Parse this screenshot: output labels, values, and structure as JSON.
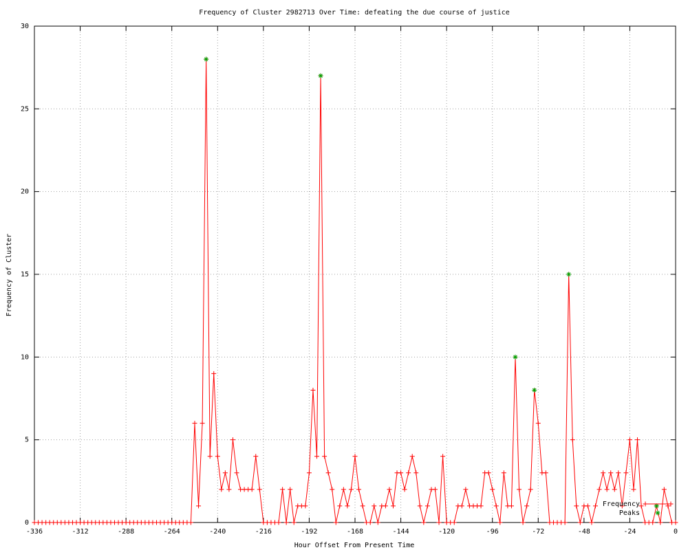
{
  "chart_data": {
    "type": "line",
    "title": "Frequency of Cluster 2982713 Over Time: defeating the due course of justice",
    "xlabel": "Hour Offset From Present Time",
    "ylabel": "Frequency of Cluster",
    "xlim": [
      -336,
      0
    ],
    "ylim": [
      0,
      30
    ],
    "xticks": [
      -336,
      -312,
      -288,
      -264,
      -240,
      -216,
      -192,
      -168,
      -144,
      -120,
      -96,
      -72,
      -48,
      -24,
      0
    ],
    "yticks": [
      0,
      5,
      10,
      15,
      20,
      25,
      30
    ],
    "grid": true,
    "legend": "bottom right",
    "series": [
      {
        "name": "Frequency",
        "color": "#ff0000",
        "marker": "plus",
        "x": [
          -336,
          -334,
          -332,
          -330,
          -328,
          -326,
          -324,
          -322,
          -320,
          -318,
          -316,
          -314,
          -312,
          -310,
          -308,
          -306,
          -304,
          -302,
          -300,
          -298,
          -296,
          -294,
          -292,
          -290,
          -288,
          -286,
          -284,
          -282,
          -280,
          -278,
          -276,
          -274,
          -272,
          -270,
          -268,
          -266,
          -264,
          -262,
          -260,
          -258,
          -256,
          -254,
          -252,
          -250,
          -248,
          -246,
          -244,
          -242,
          -240,
          -238,
          -236,
          -234,
          -232,
          -230,
          -228,
          -226,
          -224,
          -222,
          -220,
          -218,
          -216,
          -214,
          -212,
          -210,
          -208,
          -206,
          -204,
          -202,
          -200,
          -198,
          -196,
          -194,
          -192,
          -190,
          -188,
          -186,
          -184,
          -182,
          -180,
          -178,
          -176,
          -174,
          -172,
          -170,
          -168,
          -166,
          -164,
          -162,
          -160,
          -158,
          -156,
          -154,
          -152,
          -150,
          -148,
          -146,
          -144,
          -142,
          -140,
          -138,
          -136,
          -134,
          -132,
          -130,
          -128,
          -126,
          -124,
          -122,
          -120,
          -118,
          -116,
          -114,
          -112,
          -110,
          -108,
          -106,
          -104,
          -102,
          -100,
          -98,
          -96,
          -94,
          -92,
          -90,
          -88,
          -86,
          -84,
          -82,
          -80,
          -78,
          -76,
          -74,
          -72,
          -70,
          -68,
          -66,
          -64,
          -62,
          -60,
          -58,
          -56,
          -54,
          -52,
          -50,
          -48,
          -46,
          -44,
          -42,
          -40,
          -38,
          -36,
          -34,
          -32,
          -30,
          -28,
          -26,
          -24,
          -22,
          -20,
          -18,
          -16,
          -14,
          -12,
          -10,
          -8,
          -6,
          -4,
          -2,
          0
        ],
        "values": [
          0,
          0,
          0,
          0,
          0,
          0,
          0,
          0,
          0,
          0,
          0,
          0,
          0,
          0,
          0,
          0,
          0,
          0,
          0,
          0,
          0,
          0,
          0,
          0,
          0,
          0,
          0,
          0,
          0,
          0,
          0,
          0,
          0,
          0,
          0,
          0,
          0,
          0,
          0,
          0,
          0,
          0,
          6,
          1,
          6,
          28,
          4,
          9,
          4,
          2,
          3,
          2,
          5,
          3,
          2,
          2,
          2,
          2,
          4,
          2,
          0,
          0,
          0,
          0,
          0,
          2,
          0,
          2,
          0,
          1,
          1,
          1,
          3,
          8,
          4,
          27,
          4,
          3,
          2,
          0,
          1,
          2,
          1,
          2,
          4,
          2,
          1,
          0,
          0,
          1,
          0,
          1,
          1,
          2,
          1,
          3,
          3,
          2,
          3,
          4,
          3,
          1,
          0,
          1,
          2,
          2,
          0,
          4,
          0,
          0,
          0,
          1,
          1,
          2,
          1,
          1,
          1,
          1,
          3,
          3,
          2,
          1,
          0,
          3,
          1,
          1,
          10,
          2,
          0,
          1,
          2,
          8,
          6,
          3,
          3,
          0,
          0,
          0,
          0,
          0,
          15,
          5,
          1,
          0,
          1,
          1,
          0,
          1,
          2,
          3,
          2,
          3,
          2,
          3,
          1,
          3,
          5,
          2,
          5,
          1,
          0,
          0,
          0,
          1,
          0,
          2,
          1,
          0,
          0
        ]
      },
      {
        "name": "Peaks",
        "color": "#00a000",
        "marker": "star",
        "x": [
          -246,
          -186,
          -84,
          -74,
          -56,
          -10
        ],
        "values": [
          28,
          27,
          10,
          8,
          15,
          1
        ]
      }
    ]
  }
}
